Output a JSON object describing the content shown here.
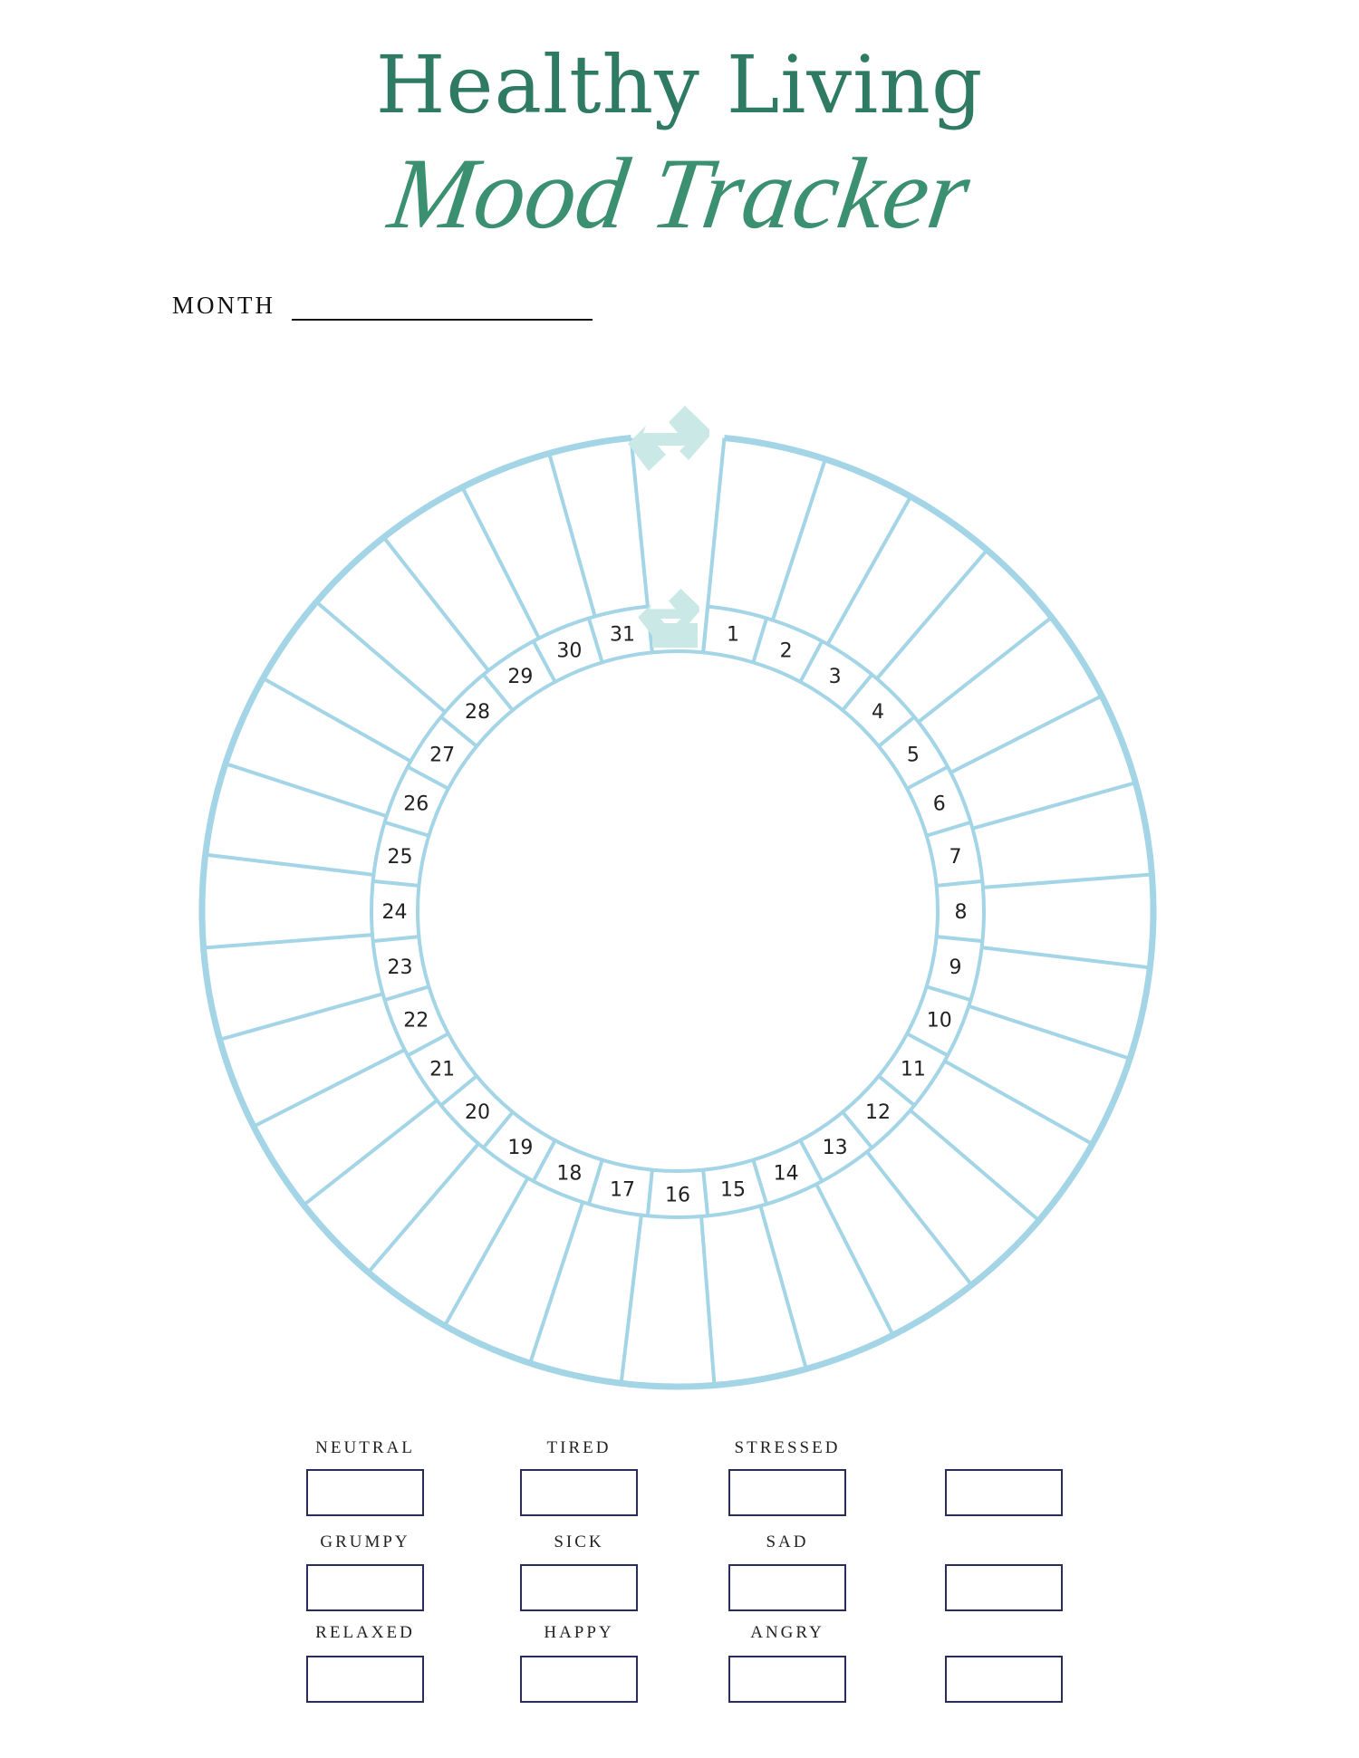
{
  "header": {
    "title": "Healthy Living",
    "subtitle": "Mood Tracker"
  },
  "month": {
    "label": "MONTH",
    "value": ""
  },
  "wheel": {
    "days": [
      "1",
      "2",
      "3",
      "4",
      "5",
      "6",
      "7",
      "8",
      "9",
      "10",
      "11",
      "12",
      "13",
      "14",
      "15",
      "16",
      "17",
      "18",
      "19",
      "20",
      "21",
      "22",
      "23",
      "24",
      "25",
      "26",
      "27",
      "28",
      "29",
      "30",
      "31"
    ],
    "line_color": "#a3d5e6",
    "arrow_color": "#c9e8e6",
    "arrow_icon": "double-arrow-icon"
  },
  "legend": {
    "rows": [
      [
        "NEUTRAL",
        "TIRED",
        "STRESSED",
        ""
      ],
      [
        "GRUMPY",
        "SICK",
        "SAD",
        ""
      ],
      [
        "RELAXED",
        "HAPPY",
        "ANGRY",
        ""
      ]
    ],
    "box_color": "#2a2d5c"
  }
}
